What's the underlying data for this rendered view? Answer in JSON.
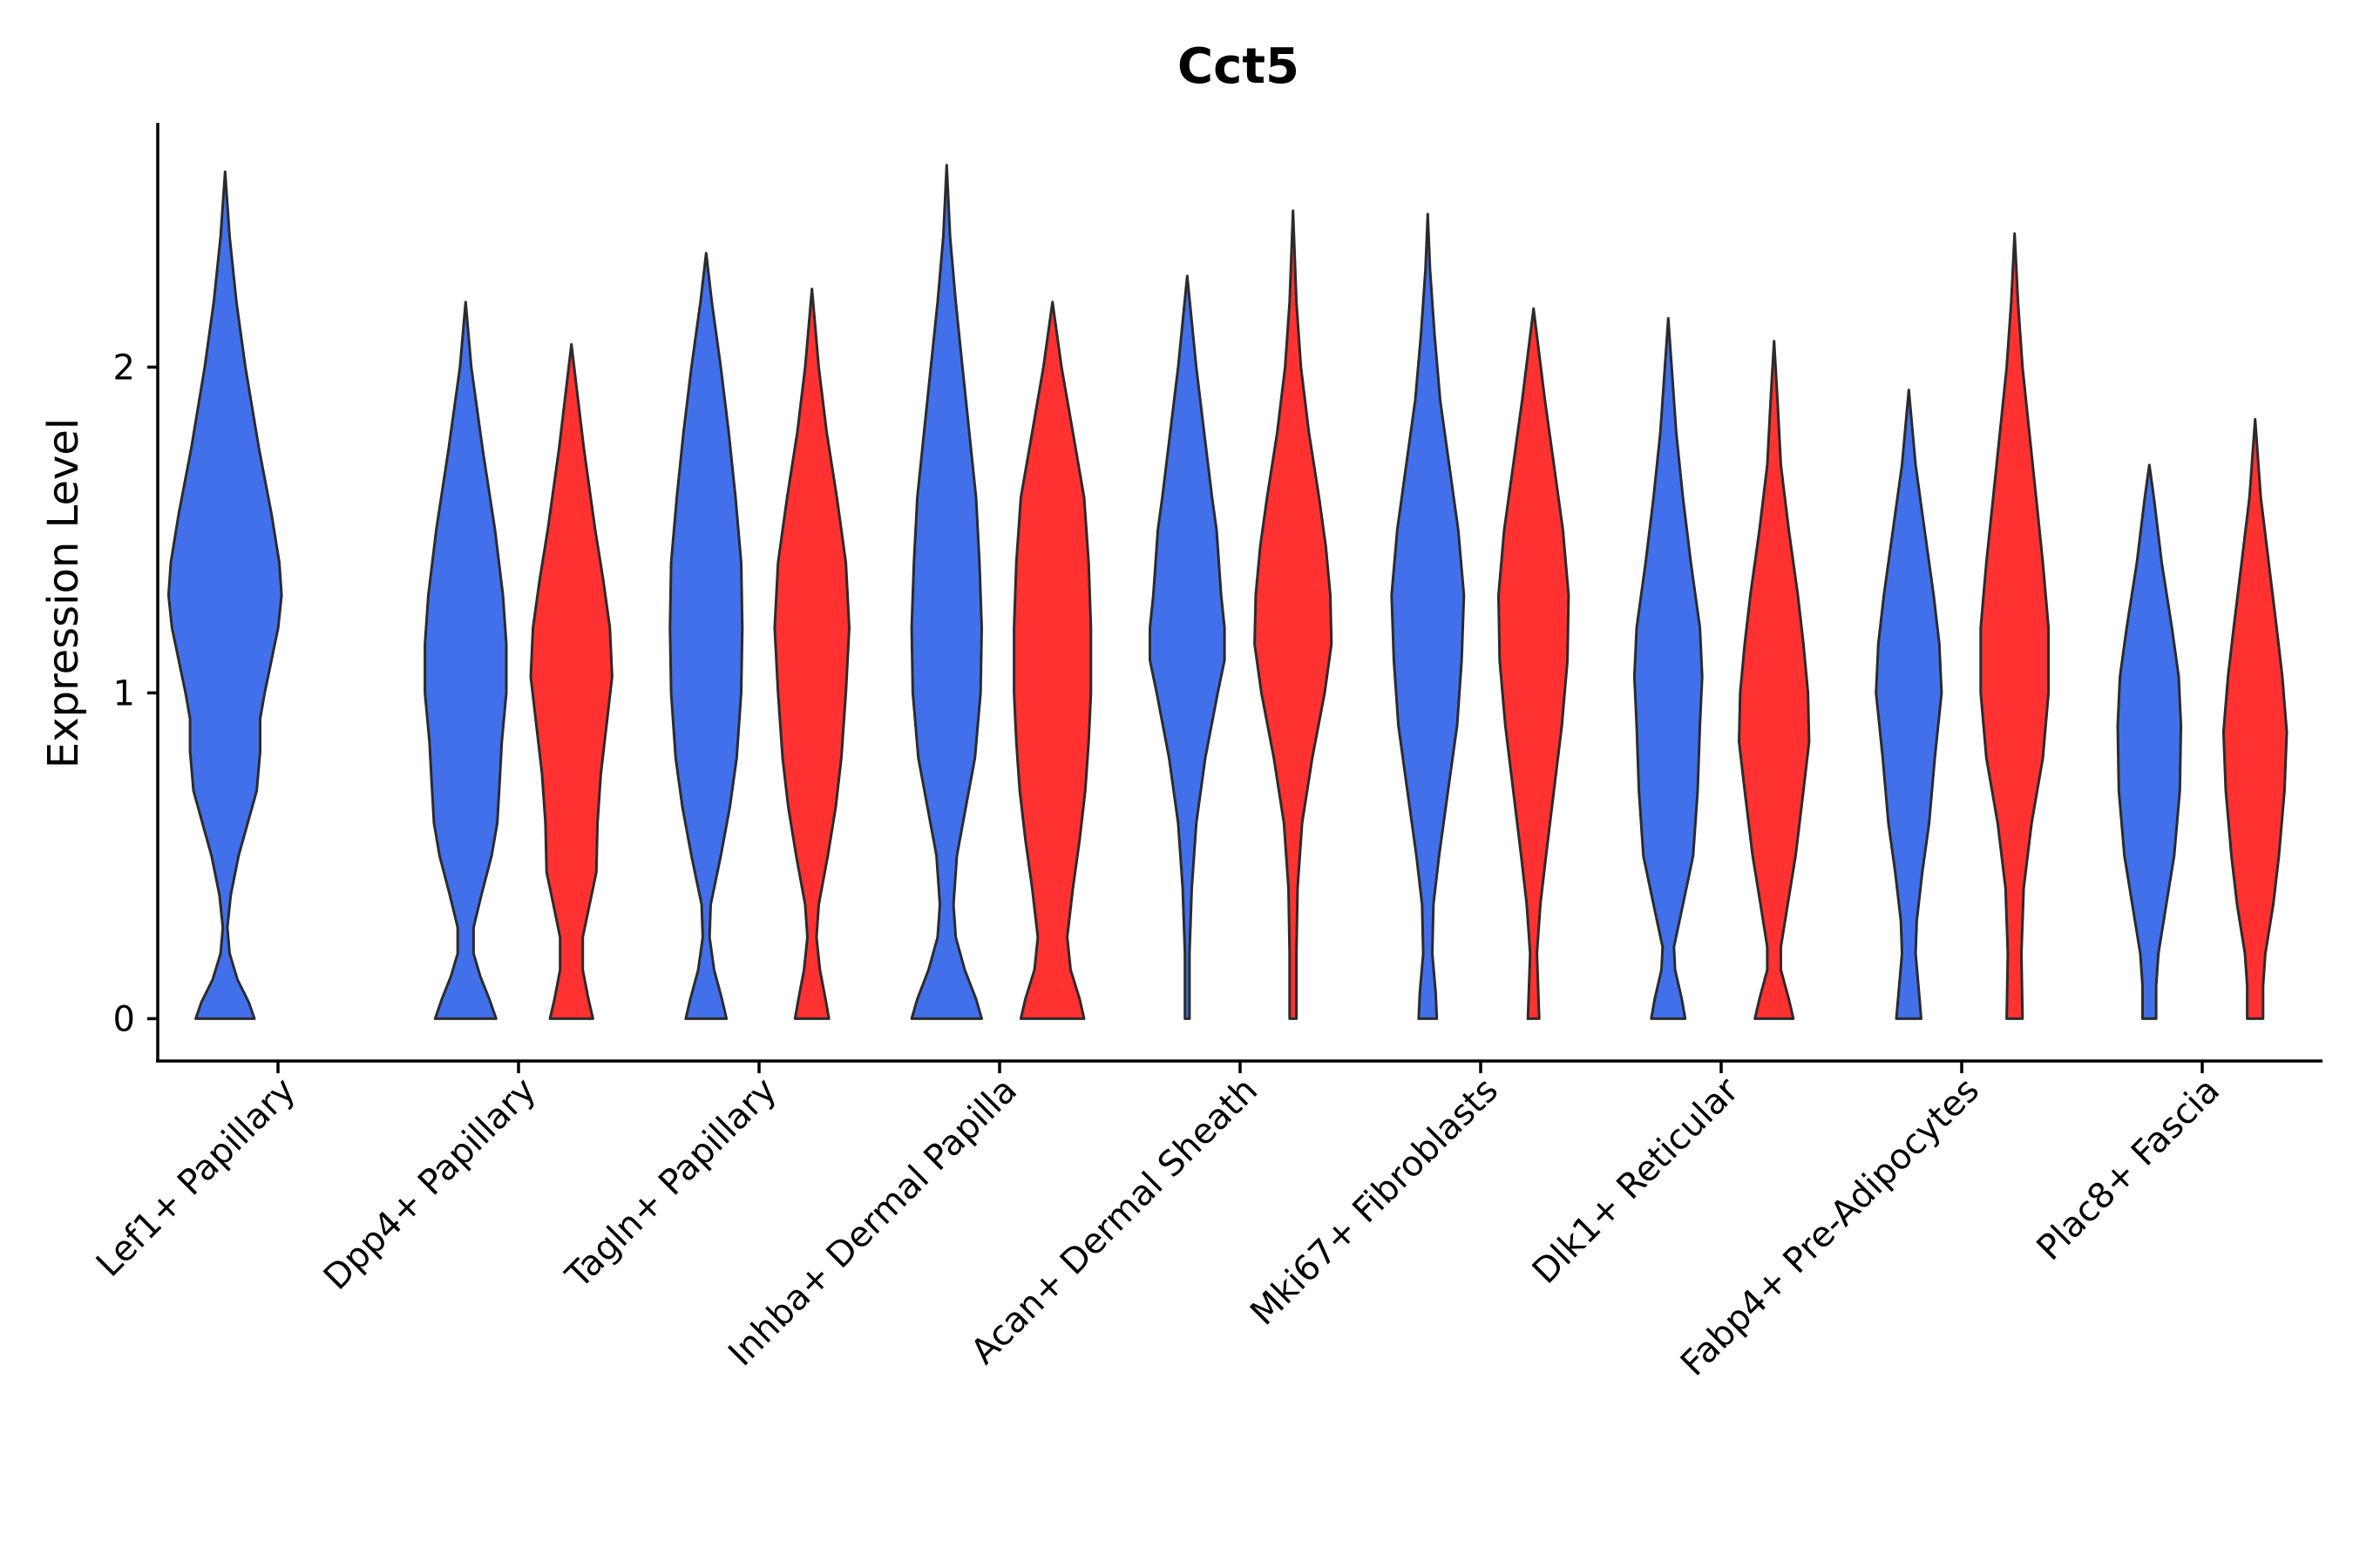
{
  "chart_data": {
    "type": "violin",
    "title": "Cct5",
    "xlabel": "",
    "ylabel": "Expression Level",
    "ylim": [
      -0.13,
      2.75
    ],
    "yticks": [
      0,
      1,
      2
    ],
    "colors": {
      "blue": "#4270ea",
      "red": "#ff3131"
    },
    "categories": [
      "Lef1+ Papillary",
      "Dpp4+ Papillary",
      "Tagln+ Papillary",
      "Inhba+ Dermal Papilla",
      "Acan+ Dermal Sheath",
      "Mki67+ Fibroblasts",
      "Dlk1+ Reticular",
      "Fabp4+ Pre-Adipocytes",
      "Plac8+ Fascia"
    ],
    "violins": [
      {
        "category": "Lef1+ Papillary",
        "color": "blue",
        "slot": 0,
        "max": 2.6,
        "profile": [
          [
            0,
            0.52
          ],
          [
            0.05,
            0.42
          ],
          [
            0.12,
            0.22
          ],
          [
            0.2,
            0.08
          ],
          [
            0.28,
            0.04
          ],
          [
            0.38,
            0.1
          ],
          [
            0.5,
            0.24
          ],
          [
            0.6,
            0.4
          ],
          [
            0.7,
            0.56
          ],
          [
            0.82,
            0.62
          ],
          [
            0.92,
            0.62
          ],
          [
            1.0,
            0.7
          ],
          [
            1.1,
            0.82
          ],
          [
            1.2,
            0.94
          ],
          [
            1.3,
            1.0
          ],
          [
            1.4,
            0.96
          ],
          [
            1.55,
            0.82
          ],
          [
            1.75,
            0.6
          ],
          [
            2.0,
            0.36
          ],
          [
            2.2,
            0.2
          ],
          [
            2.4,
            0.08
          ],
          [
            2.6,
            0.01
          ]
        ]
      },
      {
        "category": "Dpp4+ Papillary",
        "color": "blue",
        "slot": 0,
        "max": 2.2,
        "profile": [
          [
            0,
            0.54
          ],
          [
            0.06,
            0.42
          ],
          [
            0.13,
            0.26
          ],
          [
            0.2,
            0.14
          ],
          [
            0.28,
            0.14
          ],
          [
            0.38,
            0.28
          ],
          [
            0.5,
            0.46
          ],
          [
            0.6,
            0.56
          ],
          [
            0.72,
            0.6
          ],
          [
            0.85,
            0.64
          ],
          [
            1.0,
            0.72
          ],
          [
            1.15,
            0.72
          ],
          [
            1.3,
            0.66
          ],
          [
            1.5,
            0.52
          ],
          [
            1.75,
            0.3
          ],
          [
            2.0,
            0.1
          ],
          [
            2.2,
            0.01
          ]
        ]
      },
      {
        "category": "Dpp4+ Papillary",
        "color": "red",
        "slot": 1,
        "max": 2.07,
        "profile": [
          [
            0,
            0.38
          ],
          [
            0.06,
            0.3
          ],
          [
            0.15,
            0.2
          ],
          [
            0.25,
            0.2
          ],
          [
            0.35,
            0.32
          ],
          [
            0.45,
            0.44
          ],
          [
            0.6,
            0.46
          ],
          [
            0.75,
            0.52
          ],
          [
            0.9,
            0.62
          ],
          [
            1.05,
            0.72
          ],
          [
            1.2,
            0.68
          ],
          [
            1.35,
            0.56
          ],
          [
            1.5,
            0.42
          ],
          [
            1.75,
            0.22
          ],
          [
            2.07,
            0.01
          ]
        ]
      },
      {
        "category": "Tagln+ Papillary",
        "color": "blue",
        "slot": 0,
        "max": 2.35,
        "profile": [
          [
            0,
            0.36
          ],
          [
            0.06,
            0.28
          ],
          [
            0.15,
            0.14
          ],
          [
            0.25,
            0.06
          ],
          [
            0.35,
            0.08
          ],
          [
            0.5,
            0.26
          ],
          [
            0.65,
            0.42
          ],
          [
            0.8,
            0.54
          ],
          [
            1.0,
            0.62
          ],
          [
            1.2,
            0.64
          ],
          [
            1.4,
            0.62
          ],
          [
            1.6,
            0.52
          ],
          [
            1.8,
            0.4
          ],
          [
            2.0,
            0.26
          ],
          [
            2.2,
            0.1
          ],
          [
            2.35,
            0.01
          ]
        ]
      },
      {
        "category": "Tagln+ Papillary",
        "color": "red",
        "slot": 1,
        "max": 2.24,
        "profile": [
          [
            0,
            0.3
          ],
          [
            0.06,
            0.24
          ],
          [
            0.15,
            0.14
          ],
          [
            0.25,
            0.08
          ],
          [
            0.35,
            0.12
          ],
          [
            0.5,
            0.28
          ],
          [
            0.65,
            0.42
          ],
          [
            0.8,
            0.52
          ],
          [
            1.0,
            0.6
          ],
          [
            1.2,
            0.66
          ],
          [
            1.4,
            0.6
          ],
          [
            1.6,
            0.44
          ],
          [
            1.8,
            0.26
          ],
          [
            2.0,
            0.12
          ],
          [
            2.24,
            0.01
          ]
        ]
      },
      {
        "category": "Inhba+ Dermal Papilla",
        "color": "blue",
        "slot": 0,
        "max": 2.62,
        "profile": [
          [
            0,
            0.62
          ],
          [
            0.06,
            0.52
          ],
          [
            0.15,
            0.32
          ],
          [
            0.25,
            0.16
          ],
          [
            0.35,
            0.12
          ],
          [
            0.5,
            0.18
          ],
          [
            0.65,
            0.34
          ],
          [
            0.8,
            0.5
          ],
          [
            1.0,
            0.6
          ],
          [
            1.2,
            0.62
          ],
          [
            1.4,
            0.58
          ],
          [
            1.6,
            0.52
          ],
          [
            1.8,
            0.4
          ],
          [
            2.0,
            0.28
          ],
          [
            2.2,
            0.16
          ],
          [
            2.4,
            0.06
          ],
          [
            2.62,
            0.01
          ]
        ]
      },
      {
        "category": "Inhba+ Dermal Papilla",
        "color": "red",
        "slot": 1,
        "max": 2.2,
        "profile": [
          [
            0,
            0.56
          ],
          [
            0.06,
            0.48
          ],
          [
            0.15,
            0.32
          ],
          [
            0.25,
            0.26
          ],
          [
            0.4,
            0.36
          ],
          [
            0.55,
            0.48
          ],
          [
            0.7,
            0.58
          ],
          [
            0.85,
            0.64
          ],
          [
            1.0,
            0.68
          ],
          [
            1.2,
            0.68
          ],
          [
            1.4,
            0.64
          ],
          [
            1.6,
            0.56
          ],
          [
            1.8,
            0.36
          ],
          [
            2.0,
            0.16
          ],
          [
            2.2,
            0.01
          ]
        ]
      },
      {
        "category": "Acan+ Dermal Sheath",
        "color": "blue",
        "slot": 0,
        "max": 2.28,
        "profile": [
          [
            0,
            0.04
          ],
          [
            0.2,
            0.04
          ],
          [
            0.4,
            0.08
          ],
          [
            0.6,
            0.16
          ],
          [
            0.8,
            0.32
          ],
          [
            1.0,
            0.54
          ],
          [
            1.1,
            0.66
          ],
          [
            1.2,
            0.66
          ],
          [
            1.3,
            0.6
          ],
          [
            1.4,
            0.56
          ],
          [
            1.5,
            0.52
          ],
          [
            1.6,
            0.44
          ],
          [
            1.8,
            0.3
          ],
          [
            2.0,
            0.16
          ],
          [
            2.28,
            0.01
          ]
        ]
      },
      {
        "category": "Acan+ Dermal Sheath",
        "color": "red",
        "slot": 1,
        "max": 2.48,
        "profile": [
          [
            0,
            0.06
          ],
          [
            0.2,
            0.06
          ],
          [
            0.4,
            0.08
          ],
          [
            0.6,
            0.16
          ],
          [
            0.8,
            0.34
          ],
          [
            1.0,
            0.56
          ],
          [
            1.15,
            0.68
          ],
          [
            1.3,
            0.66
          ],
          [
            1.45,
            0.58
          ],
          [
            1.6,
            0.46
          ],
          [
            1.8,
            0.28
          ],
          [
            2.0,
            0.14
          ],
          [
            2.2,
            0.06
          ],
          [
            2.48,
            0.01
          ]
        ]
      },
      {
        "category": "Mki67+ Fibroblasts",
        "color": "blue",
        "slot": 0,
        "max": 2.47,
        "profile": [
          [
            0,
            0.16
          ],
          [
            0.08,
            0.14
          ],
          [
            0.2,
            0.08
          ],
          [
            0.35,
            0.1
          ],
          [
            0.5,
            0.2
          ],
          [
            0.7,
            0.36
          ],
          [
            0.9,
            0.52
          ],
          [
            1.1,
            0.6
          ],
          [
            1.3,
            0.64
          ],
          [
            1.5,
            0.54
          ],
          [
            1.7,
            0.38
          ],
          [
            1.9,
            0.22
          ],
          [
            2.1,
            0.12
          ],
          [
            2.3,
            0.04
          ],
          [
            2.47,
            0.01
          ]
        ]
      },
      {
        "category": "Mki67+ Fibroblasts",
        "color": "red",
        "slot": 1,
        "max": 2.18,
        "profile": [
          [
            0,
            0.1
          ],
          [
            0.1,
            0.08
          ],
          [
            0.2,
            0.06
          ],
          [
            0.35,
            0.12
          ],
          [
            0.5,
            0.22
          ],
          [
            0.7,
            0.36
          ],
          [
            0.9,
            0.5
          ],
          [
            1.1,
            0.6
          ],
          [
            1.3,
            0.62
          ],
          [
            1.5,
            0.52
          ],
          [
            1.7,
            0.36
          ],
          [
            1.9,
            0.2
          ],
          [
            2.18,
            0.01
          ]
        ]
      },
      {
        "category": "Dlk1+ Reticular",
        "color": "blue",
        "slot": 0,
        "max": 2.15,
        "profile": [
          [
            0,
            0.3
          ],
          [
            0.06,
            0.24
          ],
          [
            0.15,
            0.12
          ],
          [
            0.22,
            0.1
          ],
          [
            0.35,
            0.26
          ],
          [
            0.5,
            0.44
          ],
          [
            0.7,
            0.52
          ],
          [
            0.9,
            0.56
          ],
          [
            1.05,
            0.6
          ],
          [
            1.2,
            0.56
          ],
          [
            1.4,
            0.4
          ],
          [
            1.6,
            0.26
          ],
          [
            1.8,
            0.14
          ],
          [
            2.0,
            0.06
          ],
          [
            2.15,
            0.01
          ]
        ]
      },
      {
        "category": "Dlk1+ Reticular",
        "color": "red",
        "slot": 1,
        "max": 2.08,
        "profile": [
          [
            0,
            0.34
          ],
          [
            0.06,
            0.26
          ],
          [
            0.15,
            0.12
          ],
          [
            0.22,
            0.12
          ],
          [
            0.35,
            0.24
          ],
          [
            0.5,
            0.38
          ],
          [
            0.7,
            0.52
          ],
          [
            0.85,
            0.62
          ],
          [
            1.0,
            0.6
          ],
          [
            1.15,
            0.52
          ],
          [
            1.3,
            0.42
          ],
          [
            1.5,
            0.26
          ],
          [
            1.7,
            0.12
          ],
          [
            1.9,
            0.06
          ],
          [
            2.08,
            0.01
          ]
        ]
      },
      {
        "category": "Fabp4+ Pre-Adipocytes",
        "color": "blue",
        "slot": 0,
        "max": 1.93,
        "profile": [
          [
            0,
            0.22
          ],
          [
            0.08,
            0.18
          ],
          [
            0.2,
            0.12
          ],
          [
            0.3,
            0.14
          ],
          [
            0.45,
            0.24
          ],
          [
            0.6,
            0.36
          ],
          [
            0.8,
            0.46
          ],
          [
            1.0,
            0.58
          ],
          [
            1.15,
            0.54
          ],
          [
            1.3,
            0.44
          ],
          [
            1.5,
            0.28
          ],
          [
            1.7,
            0.12
          ],
          [
            1.93,
            0.02
          ]
        ]
      },
      {
        "category": "Fabp4+ Pre-Adipocytes",
        "color": "red",
        "slot": 1,
        "max": 2.41,
        "profile": [
          [
            0,
            0.14
          ],
          [
            0.2,
            0.12
          ],
          [
            0.4,
            0.16
          ],
          [
            0.6,
            0.3
          ],
          [
            0.8,
            0.5
          ],
          [
            1.0,
            0.6
          ],
          [
            1.2,
            0.6
          ],
          [
            1.4,
            0.5
          ],
          [
            1.6,
            0.38
          ],
          [
            1.8,
            0.26
          ],
          [
            2.0,
            0.14
          ],
          [
            2.2,
            0.06
          ],
          [
            2.41,
            0.02
          ]
        ]
      },
      {
        "category": "Plac8+ Fascia",
        "color": "blue",
        "slot": 0,
        "max": 1.7,
        "profile": [
          [
            0,
            0.12
          ],
          [
            0.1,
            0.12
          ],
          [
            0.2,
            0.16
          ],
          [
            0.35,
            0.3
          ],
          [
            0.5,
            0.44
          ],
          [
            0.7,
            0.54
          ],
          [
            0.9,
            0.56
          ],
          [
            1.05,
            0.52
          ],
          [
            1.2,
            0.4
          ],
          [
            1.4,
            0.22
          ],
          [
            1.6,
            0.08
          ],
          [
            1.7,
            0.03
          ]
        ]
      },
      {
        "category": "Plac8+ Fascia",
        "color": "red",
        "slot": 1,
        "max": 1.84,
        "profile": [
          [
            0,
            0.14
          ],
          [
            0.1,
            0.14
          ],
          [
            0.2,
            0.18
          ],
          [
            0.35,
            0.32
          ],
          [
            0.5,
            0.42
          ],
          [
            0.7,
            0.52
          ],
          [
            0.88,
            0.56
          ],
          [
            1.05,
            0.48
          ],
          [
            1.2,
            0.38
          ],
          [
            1.4,
            0.24
          ],
          [
            1.6,
            0.1
          ],
          [
            1.84,
            0.02
          ]
        ]
      }
    ]
  }
}
